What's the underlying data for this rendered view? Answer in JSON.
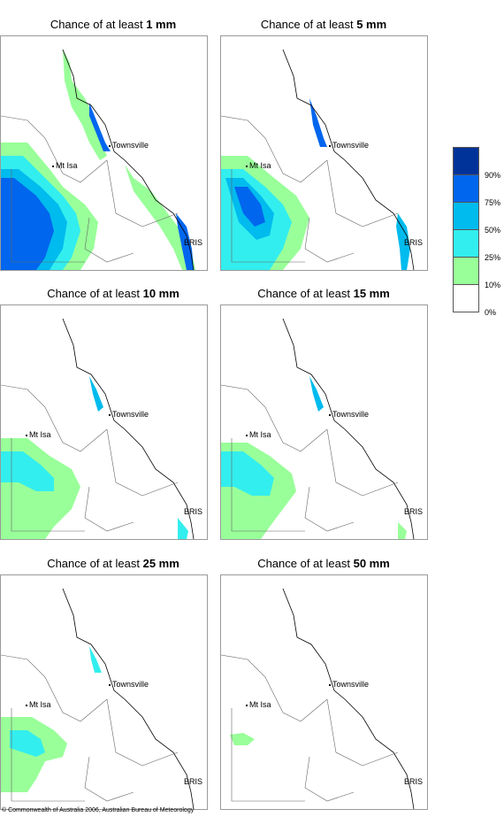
{
  "panels": [
    {
      "prefix": "Chance of at least ",
      "amount": "1 mm"
    },
    {
      "prefix": "Chance of at least ",
      "amount": "5 mm"
    },
    {
      "prefix": "Chance of at least ",
      "amount": "10 mm"
    },
    {
      "prefix": "Chance of at least ",
      "amount": "15 mm"
    },
    {
      "prefix": "Chance of at least ",
      "amount": "25 mm"
    },
    {
      "prefix": "Chance of at least ",
      "amount": "50 mm"
    }
  ],
  "places": {
    "townsville": "Townsville",
    "mt_isa": "Mt Isa",
    "bris": "BRIS"
  },
  "legend": {
    "labels": [
      "90%",
      "75%",
      "50%",
      "25%",
      "10%",
      "0%"
    ],
    "colors": [
      "#003399",
      "#0066ee",
      "#00bbee",
      "#33eeee",
      "#99ff99",
      "#ffffff"
    ]
  },
  "copyright": "© Commonwealth of Australia 2006, Australian Bureau of Meteorology"
}
